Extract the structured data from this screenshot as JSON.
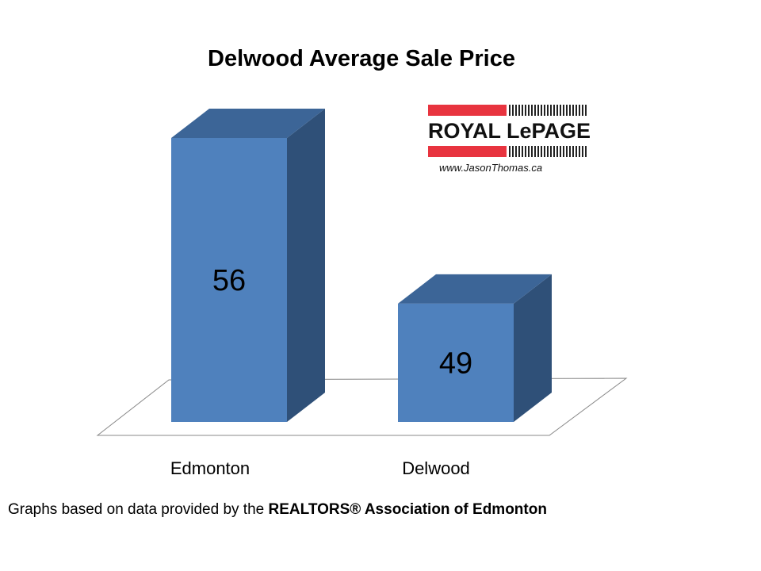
{
  "chart_data": {
    "type": "bar",
    "title": "Delwood Average Sale Price",
    "categories": [
      "Edmonton",
      "Delwood"
    ],
    "values": [
      56,
      49
    ],
    "xlabel": "",
    "ylabel": "",
    "ylim": [
      44,
      56
    ],
    "grid": false,
    "style": "3d-column",
    "bar_color": "#4f81bd",
    "bar_side_color": "#2f5078",
    "bar_top_color": "#3c6597"
  },
  "logo": {
    "brand": "ROYAL LePAGE",
    "url": "www.JasonThomas.ca"
  },
  "footer": {
    "prefix": "Graphs based on data provided by the ",
    "bold": "REALTORS® Association of Edmonton"
  }
}
